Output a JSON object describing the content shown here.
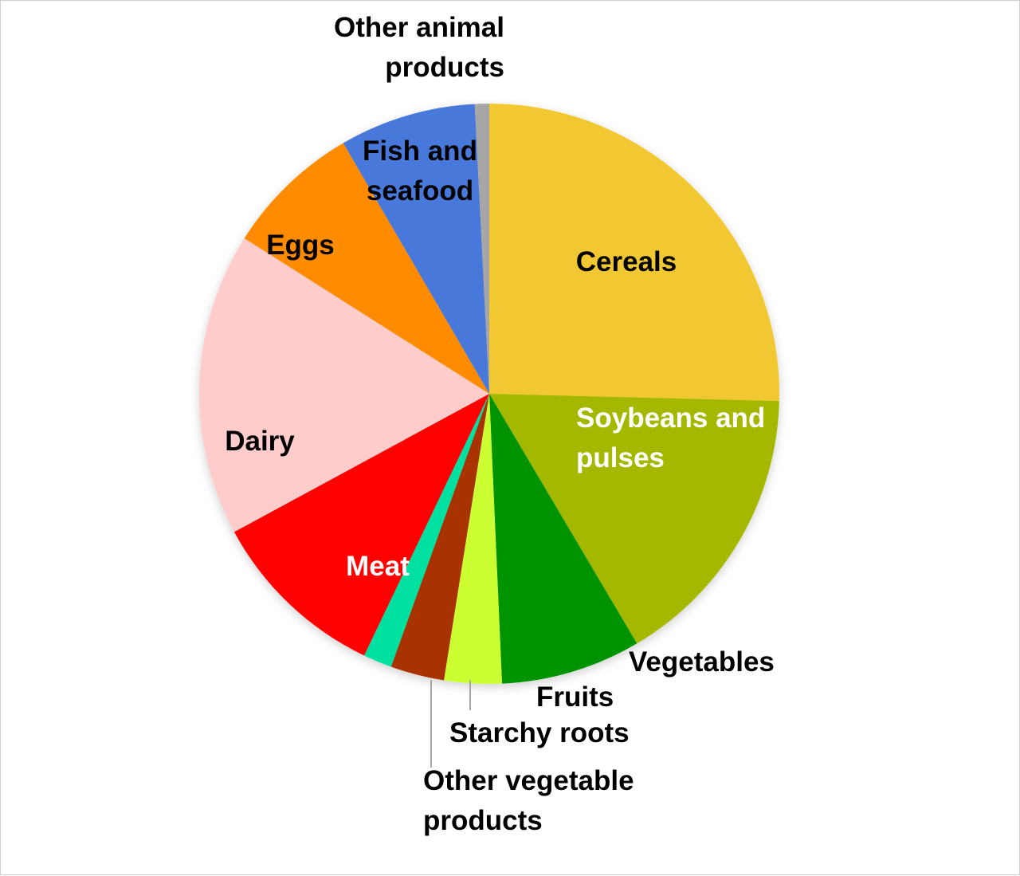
{
  "chart_data": {
    "type": "pie",
    "start_angle_deg": 0,
    "direction": "clockwise",
    "slices": [
      {
        "label": "Cereals",
        "value": 25.4,
        "color": "#F2C830",
        "label_color": "#000000"
      },
      {
        "label": "Soybeans and pulses",
        "value": 16.1,
        "color": "#A5B800",
        "label_color": "#FFFFFF"
      },
      {
        "label": "Vegetables",
        "value": 7.8,
        "color": "#009300",
        "label_color": "#000000"
      },
      {
        "label": "Fruits",
        "value": 3.2,
        "color": "#CCFF33",
        "label_color": "#000000"
      },
      {
        "label": "Starchy roots",
        "value": 3.0,
        "color": "#A83300",
        "label_color": "#000000"
      },
      {
        "label": "Other vegetable products",
        "value": 1.6,
        "color": "#00E0A0",
        "label_color": "#000000"
      },
      {
        "label": "Meat",
        "value": 10.0,
        "color": "#FF0000",
        "label_color": "#FFFFFF"
      },
      {
        "label": "Dairy",
        "value": 16.9,
        "color": "#FFCCCC",
        "label_color": "#000000"
      },
      {
        "label": "Eggs",
        "value": 7.6,
        "color": "#FF8C00",
        "label_color": "#000000"
      },
      {
        "label": "Fish and seafood",
        "value": 7.6,
        "color": "#4A78DB",
        "label_color": "#000000"
      },
      {
        "label": "Other animal products",
        "value": 0.8,
        "color": "#A6A6A6",
        "label_color": "#000000"
      }
    ],
    "leader_line_color": "#A6A6A6"
  }
}
